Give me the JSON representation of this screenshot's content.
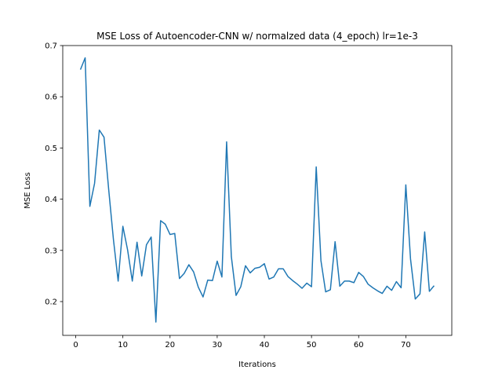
{
  "chart_data": {
    "type": "line",
    "title": "MSE Loss of Autoencoder-CNN w/ normalzed data (4_epoch) lr=1e-3",
    "xlabel": "Iterations",
    "ylabel": "MSE Loss",
    "xlim": [
      -2.75,
      79.75
    ],
    "ylim": [
      0.134,
      0.7
    ],
    "xticks": [
      0,
      10,
      20,
      30,
      40,
      50,
      60,
      70
    ],
    "yticks": [
      0.2,
      0.3,
      0.4,
      0.5,
      0.6,
      0.7
    ],
    "xtick_labels": [
      "0",
      "10",
      "20",
      "30",
      "40",
      "50",
      "60",
      "70"
    ],
    "ytick_labels": [
      "0.2",
      "0.3",
      "0.4",
      "0.5",
      "0.6",
      "0.7"
    ],
    "grid": false,
    "legend": "none",
    "color": "#1f77b4",
    "series": [
      {
        "x": [
          1,
          2,
          3,
          4,
          5,
          6,
          7,
          8,
          9,
          10,
          11,
          12,
          13,
          14,
          15,
          16,
          17,
          18,
          19,
          20,
          21,
          22,
          23,
          24,
          25,
          26,
          27,
          28,
          29,
          30,
          31,
          32,
          33,
          34,
          35,
          36,
          37,
          38,
          39,
          40,
          41,
          42,
          43,
          44,
          45,
          46,
          47,
          48,
          49,
          50,
          51,
          52,
          53,
          54,
          55,
          56,
          57,
          58,
          59,
          60,
          61,
          62,
          63,
          64,
          65,
          66,
          67,
          68,
          69,
          70,
          71,
          72,
          73,
          74,
          75,
          76
        ],
        "values": [
          0.653,
          0.676,
          0.386,
          0.431,
          0.535,
          0.521,
          0.418,
          0.321,
          0.24,
          0.347,
          0.301,
          0.24,
          0.316,
          0.25,
          0.311,
          0.326,
          0.16,
          0.358,
          0.351,
          0.331,
          0.333,
          0.245,
          0.255,
          0.272,
          0.258,
          0.228,
          0.209,
          0.242,
          0.241,
          0.279,
          0.248,
          0.512,
          0.288,
          0.212,
          0.229,
          0.27,
          0.256,
          0.265,
          0.267,
          0.274,
          0.244,
          0.248,
          0.264,
          0.264,
          0.249,
          0.241,
          0.234,
          0.226,
          0.236,
          0.229,
          0.463,
          0.28,
          0.219,
          0.223,
          0.317,
          0.23,
          0.24,
          0.24,
          0.237,
          0.257,
          0.249,
          0.234,
          0.227,
          0.221,
          0.216,
          0.23,
          0.222,
          0.239,
          0.227,
          0.428,
          0.283,
          0.205,
          0.215,
          0.336,
          0.22,
          0.231
        ]
      }
    ]
  }
}
